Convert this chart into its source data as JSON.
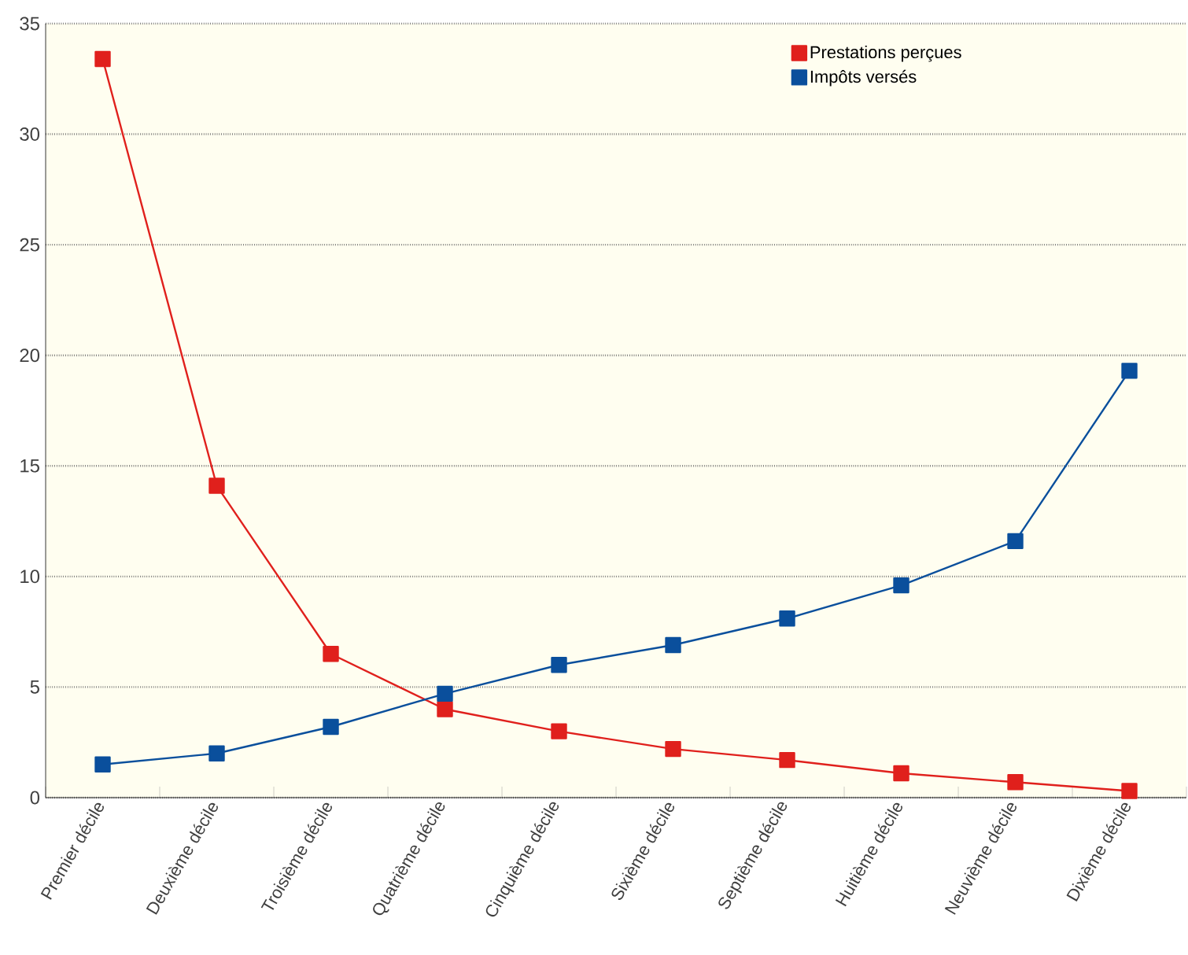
{
  "chart_data": {
    "type": "line",
    "categories": [
      "Premier décile",
      "Deuxième décile",
      "Troisième décile",
      "Quatrième décile",
      "Cinquième décile",
      "Sixième décile",
      "Septième décile",
      "Huitième décile",
      "Neuvième décile",
      "Dixième décile"
    ],
    "series": [
      {
        "name": "Prestations perçues",
        "color": "#e0201c",
        "values": [
          33.4,
          14.1,
          6.5,
          4.0,
          3.0,
          2.2,
          1.7,
          1.1,
          0.7,
          0.3
        ]
      },
      {
        "name": "Impôts versés",
        "color": "#0a4f9c",
        "values": [
          1.5,
          2.0,
          3.2,
          4.7,
          6.0,
          6.9,
          8.1,
          9.6,
          11.6,
          19.3
        ]
      }
    ],
    "ylim": [
      0,
      35
    ],
    "yticks": [
      0,
      5,
      10,
      15,
      20,
      25,
      30,
      35
    ],
    "grid": "y",
    "legend": "top right",
    "marker": "square",
    "line_style": "solid"
  }
}
